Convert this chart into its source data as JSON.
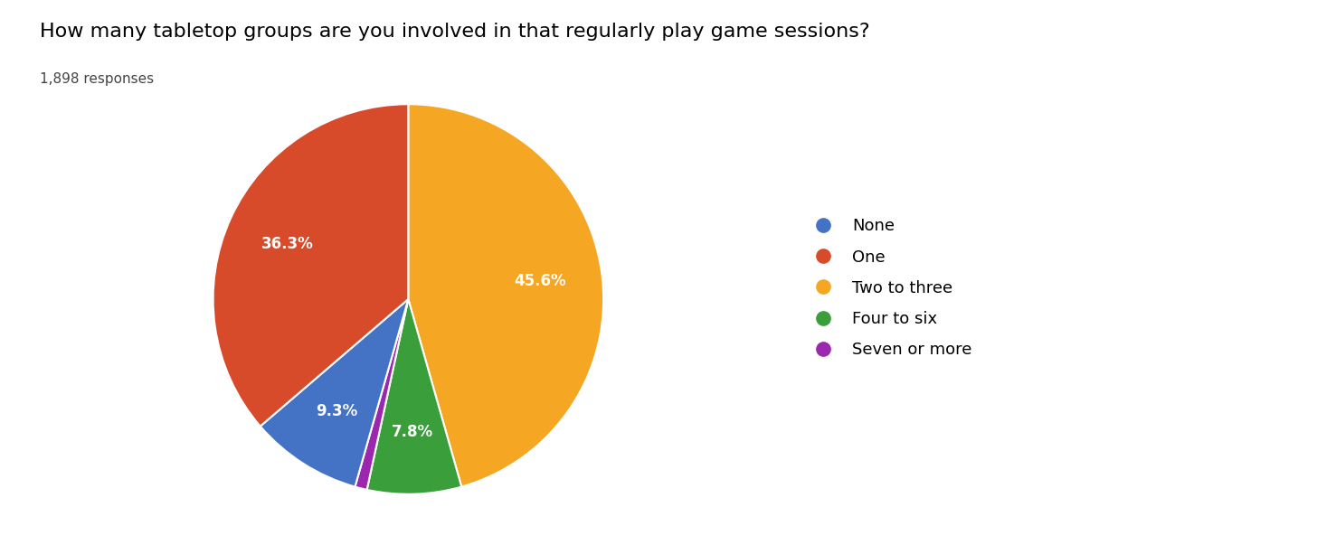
{
  "title": "How many tabletop groups are you involved in that regularly play game sessions?",
  "subtitle": "1,898 responses",
  "labels": [
    "None",
    "One",
    "Two to three",
    "Four to six",
    "Seven or more"
  ],
  "legend_colors": [
    "#4472C4",
    "#D84B2A",
    "#F5A623",
    "#3A9E3A",
    "#9B27AF"
  ],
  "plot_values": [
    45.6,
    7.8,
    1.0,
    9.3,
    36.3
  ],
  "plot_colors": [
    "#F5A623",
    "#3A9E3A",
    "#9B27AF",
    "#4472C4",
    "#D84B2A"
  ],
  "plot_labels": [
    "Two to three",
    "Four to six",
    "Seven or more",
    "None",
    "One"
  ],
  "title_fontsize": 16,
  "subtitle_fontsize": 11,
  "legend_fontsize": 13,
  "pct_fontsize": 12,
  "background_color": "#ffffff",
  "text_color": "#000000",
  "subtitle_color": "#444444"
}
